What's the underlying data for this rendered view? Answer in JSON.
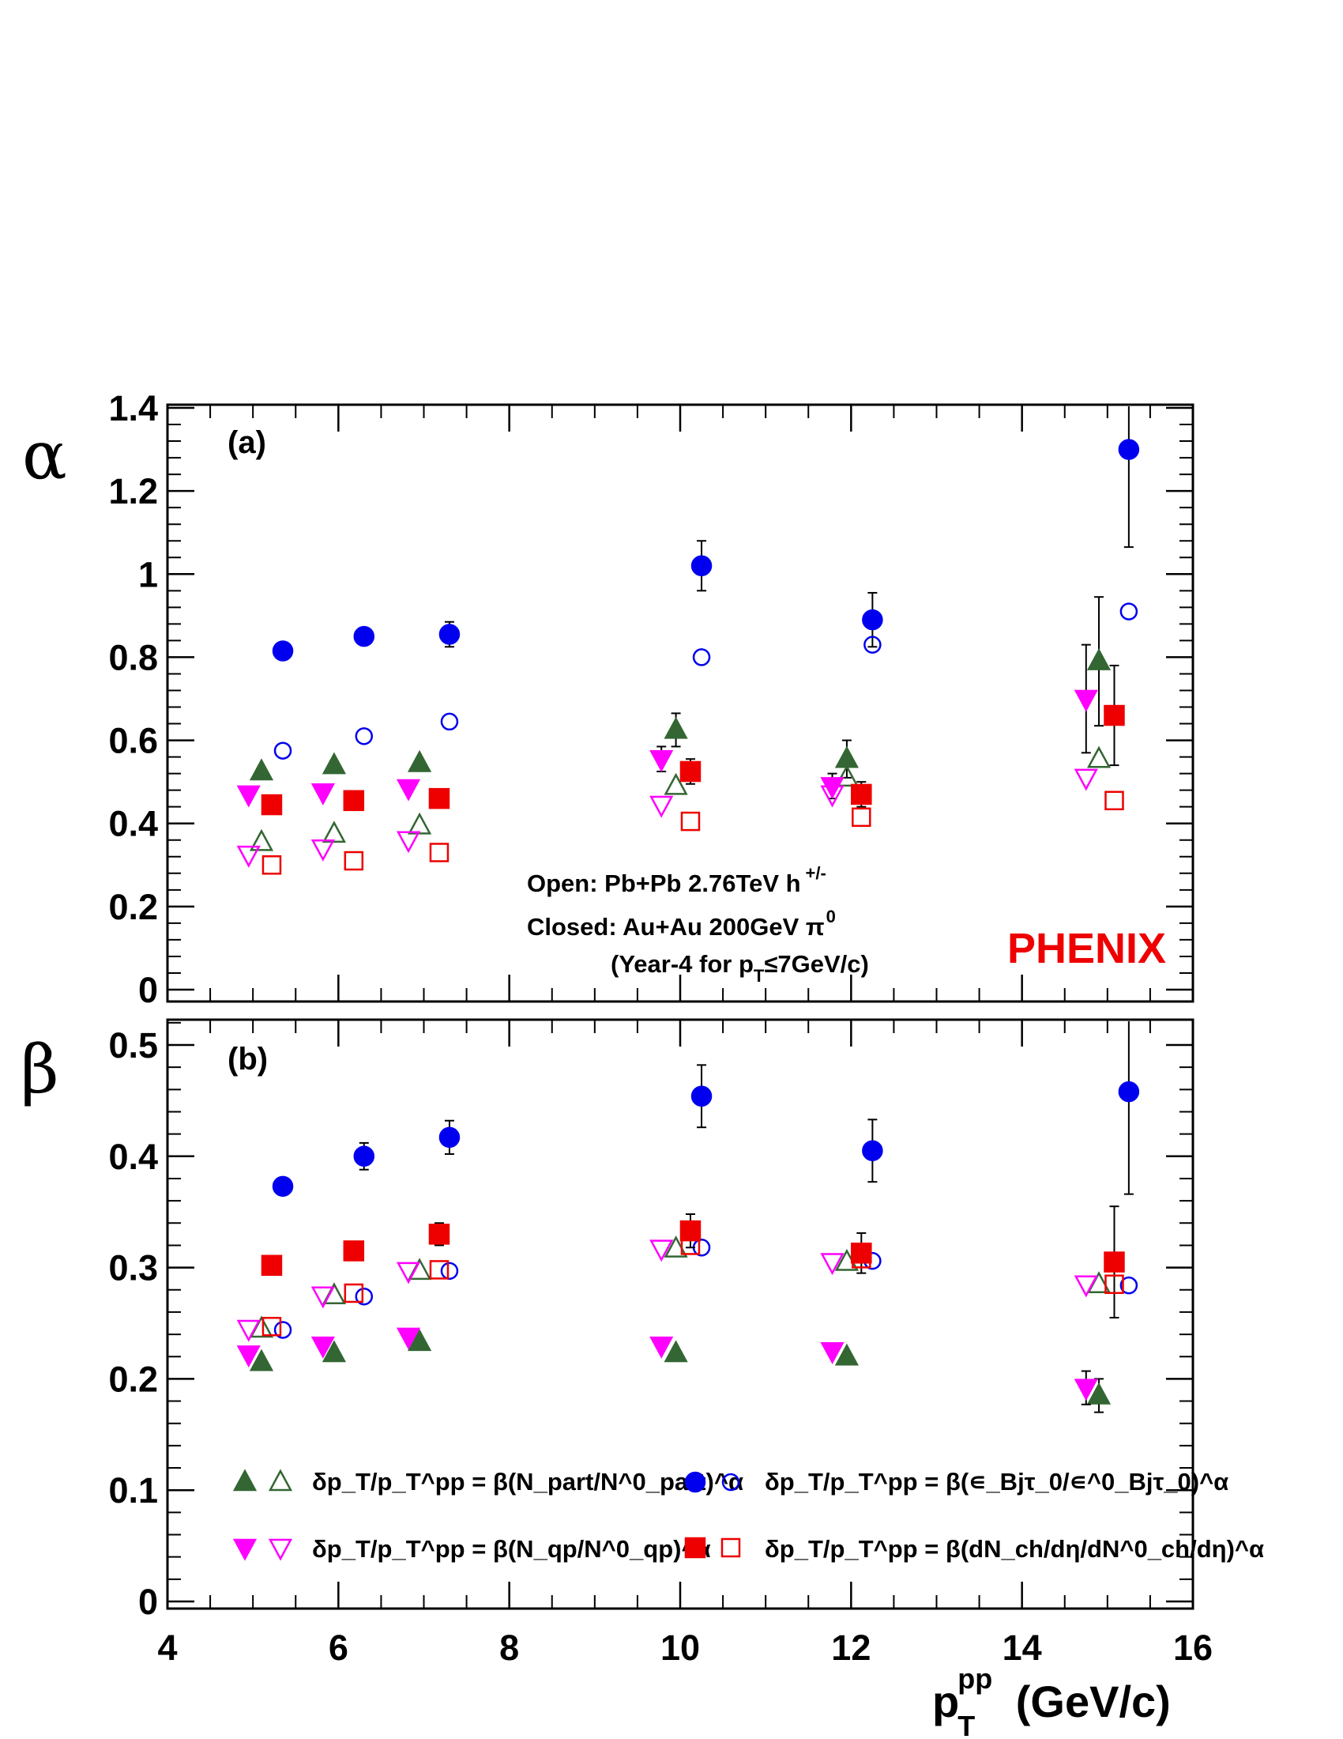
{
  "chart_data": [
    {
      "type": "scatter",
      "panel_label": "(a)",
      "ylabel": "α",
      "xlim": [
        4,
        16
      ],
      "ylim": [
        0,
        1.4
      ],
      "yticks": [
        "0",
        "0.2",
        "0.4",
        "0.6",
        "0.8",
        "1",
        "1.2",
        "1.4"
      ],
      "series": [
        {
          "key": "npart_closed",
          "x": [
            5.1,
            5.95,
            6.95,
            9.95,
            11.95,
            14.9
          ],
          "y": [
            0.525,
            0.54,
            0.545,
            0.625,
            0.555,
            0.79
          ],
          "err": [
            0.01,
            0.01,
            0.01,
            0.04,
            0.045,
            0.155
          ]
        },
        {
          "key": "npart_open",
          "x": [
            5.1,
            5.95,
            6.95,
            9.95,
            11.95,
            14.9
          ],
          "y": [
            0.355,
            0.375,
            0.395,
            0.49,
            0.51,
            0.555
          ],
          "err": [
            0.01,
            0.01,
            0.01,
            0.01,
            0.01,
            0.01
          ]
        },
        {
          "key": "nqp_closed",
          "x": [
            4.95,
            5.82,
            6.82,
            9.78,
            11.78,
            14.75
          ],
          "y": [
            0.47,
            0.475,
            0.485,
            0.555,
            0.49,
            0.7
          ],
          "err": [
            0.01,
            0.01,
            0.01,
            0.03,
            0.03,
            0.13
          ]
        },
        {
          "key": "nqp_open",
          "x": [
            4.95,
            5.82,
            6.82,
            9.78,
            11.78,
            14.75
          ],
          "y": [
            0.325,
            0.34,
            0.36,
            0.445,
            0.47,
            0.51
          ],
          "err": [
            0.01,
            0.01,
            0.01,
            0.01,
            0.01,
            0.01
          ]
        },
        {
          "key": "epsilon_closed",
          "x": [
            5.35,
            6.3,
            7.3,
            10.25,
            12.25,
            15.25
          ],
          "y": [
            0.815,
            0.85,
            0.855,
            1.02,
            0.89,
            1.3
          ],
          "err": [
            0.01,
            0.01,
            0.03,
            0.06,
            0.065,
            0.235
          ]
        },
        {
          "key": "epsilon_open",
          "x": [
            5.35,
            6.3,
            7.3,
            10.25,
            12.25,
            15.25
          ],
          "y": [
            0.575,
            0.61,
            0.645,
            0.8,
            0.83,
            0.91
          ],
          "err": [
            0.01,
            0.01,
            0.01,
            0.01,
            0.01,
            0.02
          ]
        },
        {
          "key": "dndeta_closed",
          "x": [
            5.22,
            6.18,
            7.18,
            10.12,
            12.12,
            15.08
          ],
          "y": [
            0.445,
            0.455,
            0.46,
            0.525,
            0.47,
            0.66
          ],
          "err": [
            0.01,
            0.01,
            0.01,
            0.03,
            0.03,
            0.12
          ]
        },
        {
          "key": "dndeta_open",
          "x": [
            5.22,
            6.18,
            7.18,
            10.12,
            12.12,
            15.08
          ],
          "y": [
            0.3,
            0.31,
            0.33,
            0.405,
            0.415,
            0.455
          ],
          "err": [
            0.01,
            0.01,
            0.01,
            0.01,
            0.01,
            0.01
          ]
        }
      ]
    },
    {
      "type": "scatter",
      "panel_label": "(b)",
      "ylabel": "β",
      "xlim": [
        4,
        16
      ],
      "ylim": [
        0,
        0.52
      ],
      "yticks": [
        "0",
        "0.1",
        "0.2",
        "0.3",
        "0.4",
        "0.5"
      ],
      "xticks": [
        "4",
        "6",
        "8",
        "10",
        "12",
        "14",
        "16"
      ],
      "xlabel": "p_T^pp (GeV/c)",
      "series": [
        {
          "key": "npart_closed",
          "x": [
            5.1,
            5.95,
            6.95,
            9.95,
            11.95,
            14.9
          ],
          "y": [
            0.215,
            0.223,
            0.233,
            0.223,
            0.22,
            0.185
          ],
          "err": [
            0.002,
            0.002,
            0.002,
            0.002,
            0.002,
            0.015
          ]
        },
        {
          "key": "npart_open",
          "x": [
            5.1,
            5.95,
            6.95,
            9.95,
            11.95,
            14.9
          ],
          "y": [
            0.245,
            0.275,
            0.297,
            0.317,
            0.305,
            0.285
          ],
          "err": [
            0.002,
            0.002,
            0.002,
            0.002,
            0.002,
            0.002
          ]
        },
        {
          "key": "nqp_closed",
          "x": [
            4.95,
            5.82,
            6.82,
            9.78,
            11.78,
            14.75
          ],
          "y": [
            0.222,
            0.23,
            0.238,
            0.23,
            0.225,
            0.192
          ],
          "err": [
            0.002,
            0.002,
            0.002,
            0.002,
            0.002,
            0.015
          ]
        },
        {
          "key": "nqp_open",
          "x": [
            4.95,
            5.82,
            6.82,
            9.78,
            11.78,
            14.75
          ],
          "y": [
            0.245,
            0.275,
            0.297,
            0.317,
            0.305,
            0.285
          ],
          "err": [
            0.002,
            0.002,
            0.002,
            0.002,
            0.002,
            0.002
          ]
        },
        {
          "key": "epsilon_closed",
          "x": [
            5.35,
            6.3,
            7.3,
            10.25,
            12.25,
            15.25
          ],
          "y": [
            0.373,
            0.4,
            0.417,
            0.454,
            0.405,
            0.458
          ],
          "err": [
            0.003,
            0.012,
            0.015,
            0.028,
            0.028,
            0.092
          ]
        },
        {
          "key": "epsilon_open",
          "x": [
            5.35,
            6.3,
            7.3,
            10.25,
            12.25,
            15.25
          ],
          "y": [
            0.244,
            0.274,
            0.297,
            0.318,
            0.306,
            0.284
          ],
          "err": [
            0.002,
            0.002,
            0.002,
            0.002,
            0.002,
            0.002
          ]
        },
        {
          "key": "dndeta_closed",
          "x": [
            5.22,
            6.18,
            7.18,
            10.12,
            12.12,
            15.08
          ],
          "y": [
            0.302,
            0.315,
            0.33,
            0.333,
            0.313,
            0.305
          ],
          "err": [
            0.003,
            0.005,
            0.01,
            0.015,
            0.018,
            0.05
          ]
        },
        {
          "key": "dndeta_open",
          "x": [
            5.22,
            6.18,
            7.18,
            10.12,
            12.12,
            15.08
          ],
          "y": [
            0.247,
            0.277,
            0.298,
            0.32,
            0.308,
            0.285
          ],
          "err": [
            0.002,
            0.002,
            0.002,
            0.002,
            0.002,
            0.002
          ]
        }
      ]
    }
  ],
  "annotation": {
    "open_label": "Open: Pb+Pb 2.76TeV h",
    "open_sup": "+/-",
    "closed_label": "Closed: Au+Au 200GeV  π",
    "closed_sup": "0",
    "year_prefix": "(Year-4 for p",
    "year_sub": "T",
    "year_suffix": "≤7GeV/c)",
    "brand": "PHENIX"
  },
  "legend": {
    "npart": "δp_T/p_T^pp = β(N_part/N^0_part)^α",
    "nqp": "δp_T/p_T^pp = β(N_qp/N^0_qp)^α",
    "epsilon": "δp_T/p_T^pp = β(∊_Bjτ_0/∊^0_Bjτ_0)^α",
    "dndeta": "δp_T/p_T^pp = β(dN_ch/dη/dN^0_ch/dη)^α"
  },
  "colors": {
    "green": "#336633",
    "magenta": "#ff00ff",
    "blue": "#0000ee",
    "red": "#ee0000",
    "brand": "#ee0000",
    "axis": "#000000"
  }
}
